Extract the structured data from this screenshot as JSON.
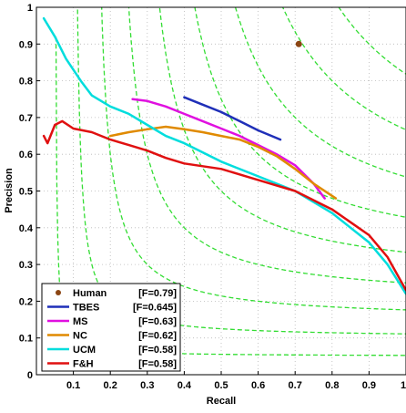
{
  "chart_data": {
    "type": "line",
    "xlabel": "Recall",
    "ylabel": "Precision",
    "xlim": [
      0,
      1
    ],
    "ylim": [
      0,
      1
    ],
    "grid": true,
    "legend_placement": "bottom-left",
    "x_ticks": [
      {
        "value": 0.1,
        "label": "0.1"
      },
      {
        "value": 0.2,
        "label": "0.2"
      },
      {
        "value": 0.3,
        "label": "0.3"
      },
      {
        "value": 0.4,
        "label": "0.4"
      },
      {
        "value": 0.5,
        "label": "0.5"
      },
      {
        "value": 0.6,
        "label": "0.6"
      },
      {
        "value": 0.7,
        "label": "0.7"
      },
      {
        "value": 0.8,
        "label": "0.8"
      },
      {
        "value": 0.9,
        "label": "0.9"
      },
      {
        "value": 1.0,
        "label": "1"
      }
    ],
    "y_ticks": [
      {
        "value": 0.0,
        "label": "0"
      },
      {
        "value": 0.1,
        "label": "0.1"
      },
      {
        "value": 0.2,
        "label": "0.2"
      },
      {
        "value": 0.3,
        "label": "0.3"
      },
      {
        "value": 0.4,
        "label": "0.4"
      },
      {
        "value": 0.5,
        "label": "0.5"
      },
      {
        "value": 0.6,
        "label": "0.6"
      },
      {
        "value": 0.7,
        "label": "0.7"
      },
      {
        "value": 0.8,
        "label": "0.8"
      },
      {
        "value": 0.9,
        "label": "0.9"
      },
      {
        "value": 1.0,
        "label": "1"
      }
    ],
    "iso_f_curves": {
      "color": "#33dd33",
      "f_values": [
        0.1,
        0.2,
        0.3,
        0.4,
        0.5,
        0.6,
        0.7,
        0.8,
        0.9
      ]
    },
    "human_point": {
      "name": "Human",
      "f_label": "[F=0.79]",
      "color": "#8b4513",
      "x": 0.71,
      "y": 0.9
    },
    "series": [
      {
        "name": "TBES",
        "f_label": "[F=0.645]",
        "color": "#1f2fb8",
        "x": [
          0.4,
          0.45,
          0.5,
          0.55,
          0.6,
          0.66
        ],
        "y": [
          0.755,
          0.735,
          0.715,
          0.69,
          0.665,
          0.64
        ]
      },
      {
        "name": "MS",
        "f_label": "[F=0.63]",
        "color": "#e010e0",
        "x": [
          0.26,
          0.3,
          0.35,
          0.4,
          0.45,
          0.5,
          0.55,
          0.6,
          0.65,
          0.7,
          0.75,
          0.78
        ],
        "y": [
          0.75,
          0.745,
          0.73,
          0.71,
          0.69,
          0.67,
          0.65,
          0.625,
          0.6,
          0.57,
          0.52,
          0.48
        ]
      },
      {
        "name": "NC",
        "f_label": "[F=0.62]",
        "color": "#e08a00",
        "x": [
          0.2,
          0.25,
          0.3,
          0.35,
          0.4,
          0.45,
          0.5,
          0.55,
          0.6,
          0.65,
          0.7,
          0.75,
          0.81
        ],
        "y": [
          0.65,
          0.66,
          0.668,
          0.675,
          0.668,
          0.66,
          0.65,
          0.64,
          0.62,
          0.595,
          0.56,
          0.52,
          0.48
        ]
      },
      {
        "name": "UCM",
        "f_label": "[F=0.58]",
        "color": "#00dddd",
        "x": [
          0.02,
          0.05,
          0.08,
          0.12,
          0.15,
          0.2,
          0.25,
          0.3,
          0.35,
          0.4,
          0.5,
          0.6,
          0.7,
          0.8,
          0.9,
          0.95,
          1.0
        ],
        "y": [
          0.97,
          0.92,
          0.86,
          0.8,
          0.76,
          0.73,
          0.71,
          0.68,
          0.65,
          0.63,
          0.58,
          0.54,
          0.5,
          0.44,
          0.36,
          0.3,
          0.22
        ]
      },
      {
        "name": "F&H",
        "f_label": "[F=0.58]",
        "color": "#e01010",
        "x": [
          0.02,
          0.03,
          0.05,
          0.07,
          0.1,
          0.15,
          0.2,
          0.25,
          0.3,
          0.35,
          0.4,
          0.5,
          0.6,
          0.7,
          0.8,
          0.9,
          0.95,
          1.0
        ],
        "y": [
          0.65,
          0.63,
          0.68,
          0.69,
          0.67,
          0.66,
          0.64,
          0.625,
          0.61,
          0.59,
          0.575,
          0.56,
          0.53,
          0.5,
          0.45,
          0.38,
          0.32,
          0.23
        ]
      }
    ]
  }
}
